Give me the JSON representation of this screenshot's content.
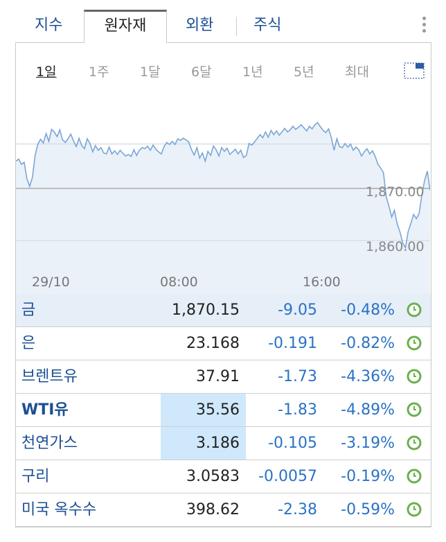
{
  "tabs": [
    "지수",
    "원자재",
    "외환",
    "주식"
  ],
  "active_tab": 1,
  "ranges": [
    "1일",
    "1주",
    "1달",
    "6달",
    "1년",
    "5년",
    "최대"
  ],
  "active_range": 0,
  "chart_data": {
    "type": "area",
    "x_ticks": [
      "29/10",
      "08:00",
      "16:00"
    ],
    "y_ticks": [
      "1,870.00",
      "1,860.00"
    ],
    "y_tick_values": [
      1870,
      1860
    ],
    "ylim": [
      1853.5,
      1887.5
    ],
    "series": [
      {
        "values": [
          1875.2,
          1875.6,
          1874.6,
          1875.0,
          1871.9,
          1870.4,
          1872.1,
          1876.3,
          1878.5,
          1879.4,
          1878.7,
          1880.5,
          1879.0,
          1881.3,
          1880.8,
          1879.9,
          1881.2,
          1879.3,
          1878.8,
          1879.5,
          1880.4,
          1879.1,
          1878.0,
          1879.6,
          1878.2,
          1877.6,
          1879.5,
          1878.6,
          1877.0,
          1878.2,
          1877.3,
          1877.8,
          1876.8,
          1876.6,
          1877.9,
          1876.6,
          1877.2,
          1876.5,
          1877.3,
          1876.7,
          1876.2,
          1876.5,
          1876.1,
          1877.4,
          1876.3,
          1877.3,
          1877.8,
          1877.6,
          1878.1,
          1877.3,
          1878.3,
          1877.5,
          1877.0,
          1876.6,
          1878.0,
          1878.8,
          1878.4,
          1879.0,
          1878.4,
          1879.5,
          1879.2,
          1879.6,
          1879.3,
          1878.9,
          1877.4,
          1876.4,
          1877.8,
          1875.8,
          1876.8,
          1875.2,
          1877.1,
          1876.3,
          1878.1,
          1877.4,
          1876.2,
          1877.8,
          1877.1,
          1877.7,
          1876.5,
          1877.0,
          1877.5,
          1876.6,
          1877.3,
          1875.9,
          1876.3,
          1878.6,
          1878.3,
          1878.9,
          1879.6,
          1880.3,
          1879.7,
          1880.8,
          1879.8,
          1881.1,
          1880.3,
          1881.0,
          1880.2,
          1880.8,
          1881.5,
          1880.8,
          1881.2,
          1881.9,
          1881.3,
          1881.7,
          1882.2,
          1881.6,
          1881.0,
          1881.9,
          1881.4,
          1882.2,
          1882.6,
          1881.8,
          1881.1,
          1880.7,
          1881.4,
          1879.7,
          1877.3,
          1879.5,
          1878.0,
          1877.8,
          1878.6,
          1877.9,
          1878.5,
          1877.3,
          1877.9,
          1877.4,
          1876.2,
          1877.0,
          1877.6,
          1876.6,
          1877.2,
          1876.1,
          1874.6,
          1873.9,
          1873.0,
          1868.4,
          1866.6,
          1864.5,
          1865.8,
          1863.2,
          1861.7,
          1859.6,
          1858.6,
          1861.7,
          1863.3,
          1865.0,
          1864.2,
          1865.2,
          1868.7,
          1871.5,
          1873.3,
          1869.6
        ]
      }
    ],
    "line_color": "#7aa6d6",
    "fill_color": "#e8eff8",
    "grid": true
  },
  "rows": [
    {
      "name": "금",
      "price": "1,870.15",
      "change": "-9.05",
      "pct": "-0.48%",
      "bold": false,
      "selected": true,
      "highlight": false
    },
    {
      "name": "은",
      "price": "23.168",
      "change": "-0.191",
      "pct": "-0.82%",
      "bold": false,
      "selected": false,
      "highlight": false
    },
    {
      "name": "브렌트유",
      "price": "37.91",
      "change": "-1.73",
      "pct": "-4.36%",
      "bold": false,
      "selected": false,
      "highlight": false
    },
    {
      "name": "WTI유",
      "price": "35.56",
      "change": "-1.83",
      "pct": "-4.89%",
      "bold": true,
      "selected": false,
      "highlight": true
    },
    {
      "name": "천연가스",
      "price": "3.186",
      "change": "-0.105",
      "pct": "-3.19%",
      "bold": false,
      "selected": false,
      "highlight": true
    },
    {
      "name": "구리",
      "price": "3.0583",
      "change": "-0.0057",
      "pct": "-0.19%",
      "bold": false,
      "selected": false,
      "highlight": false
    },
    {
      "name": "미국 옥수수",
      "price": "398.62",
      "change": "-2.38",
      "pct": "-0.59%",
      "bold": false,
      "selected": false,
      "highlight": false
    }
  ],
  "colors": {
    "accent": "#1b4f92",
    "negative": "#2a72c6",
    "clock": "#6ab04c"
  },
  "icons": {
    "menu": "vertical-dots-icon",
    "fullscreen": "fullscreen-icon",
    "row_status": "clock-icon"
  }
}
